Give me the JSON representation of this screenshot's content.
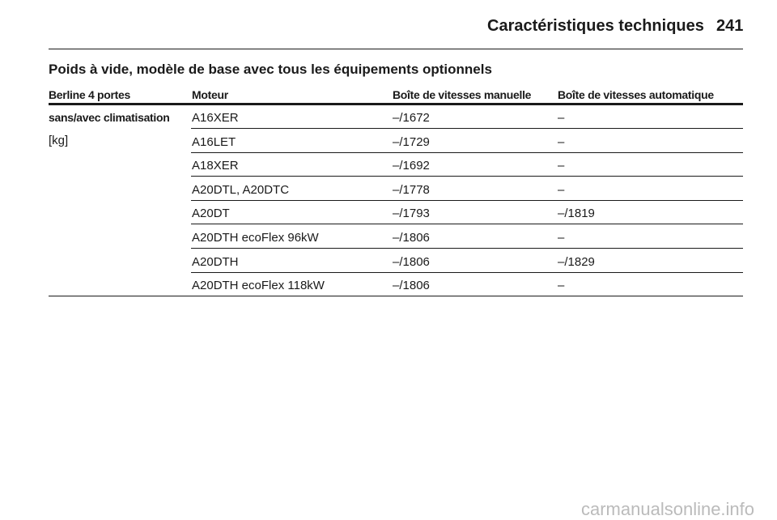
{
  "header": {
    "title": "Caractéristiques techniques",
    "page": "241"
  },
  "section_title": "Poids à vide, modèle de base avec tous les équipements optionnels",
  "table": {
    "columns": [
      "Berline 4 portes",
      "Moteur",
      "Boîte de vitesses manuelle",
      "Boîte de vitesses automatique"
    ],
    "row_label": [
      "sans/avec climatisation",
      "[kg]"
    ],
    "rows": [
      [
        "A16XER",
        "–/1672",
        "–"
      ],
      [
        "A16LET",
        "–/1729",
        "–"
      ],
      [
        "A18XER",
        "–/1692",
        "–"
      ],
      [
        "A20DTL, A20DTC",
        "–/1778",
        "–"
      ],
      [
        "A20DT",
        "–/1793",
        "–/1819"
      ],
      [
        "A20DTH ecoFlex 96kW",
        "–/1806",
        "–"
      ],
      [
        "A20DTH",
        "–/1806",
        "–/1829"
      ],
      [
        "A20DTH ecoFlex 118kW",
        "–/1806",
        "–"
      ]
    ]
  },
  "watermark": "carmanualsonline.info"
}
